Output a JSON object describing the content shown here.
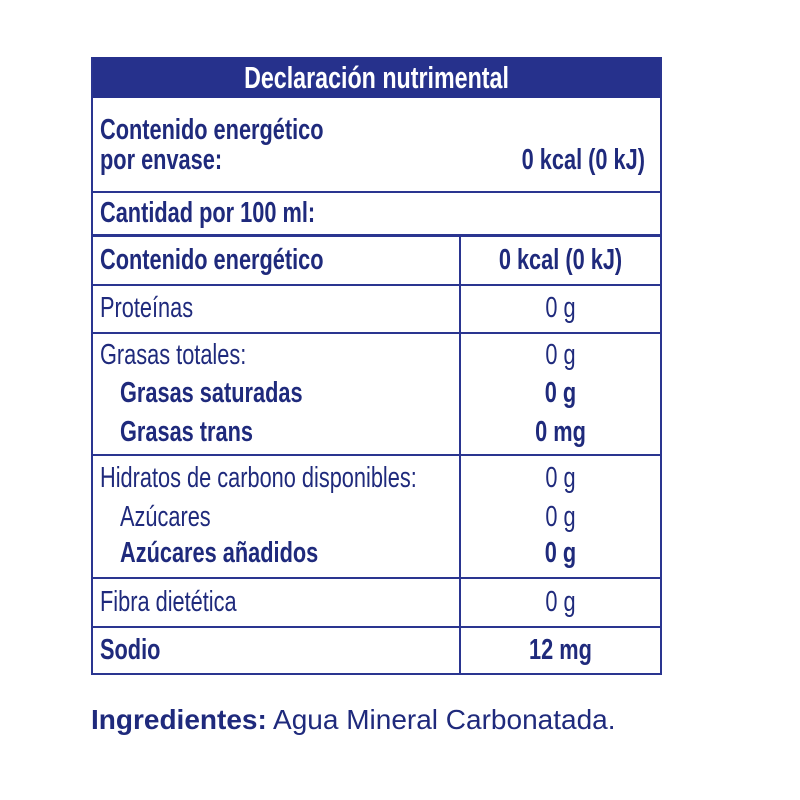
{
  "header": {
    "title": "Declaración nutrimental"
  },
  "per_package": {
    "label_lines": [
      "Contenido energético",
      "por envase:"
    ],
    "value": "0 kcal (0 kJ)"
  },
  "serving": {
    "label": "Cantidad por 100 ml:"
  },
  "table": {
    "rows": [
      [
        "Contenido energético",
        "0 kcal (0 kJ)"
      ],
      [
        "Proteínas",
        "0 g"
      ],
      [
        "Grasas totales:",
        "0 g"
      ],
      [
        "Grasas saturadas",
        "0 g"
      ],
      [
        "Grasas trans",
        "0 mg"
      ],
      [
        "Hidratos de carbono disponibles:",
        "0 g"
      ],
      [
        "Azúcares",
        "0 g"
      ],
      [
        "Azúcares añadidos",
        "0 g"
      ],
      [
        "Fibra dietética",
        "0 g"
      ],
      [
        "Sodio",
        "12 mg"
      ]
    ]
  },
  "ingredients": {
    "label": "Ingredientes:",
    "text": "Agua Mineral Carbonatada."
  }
}
